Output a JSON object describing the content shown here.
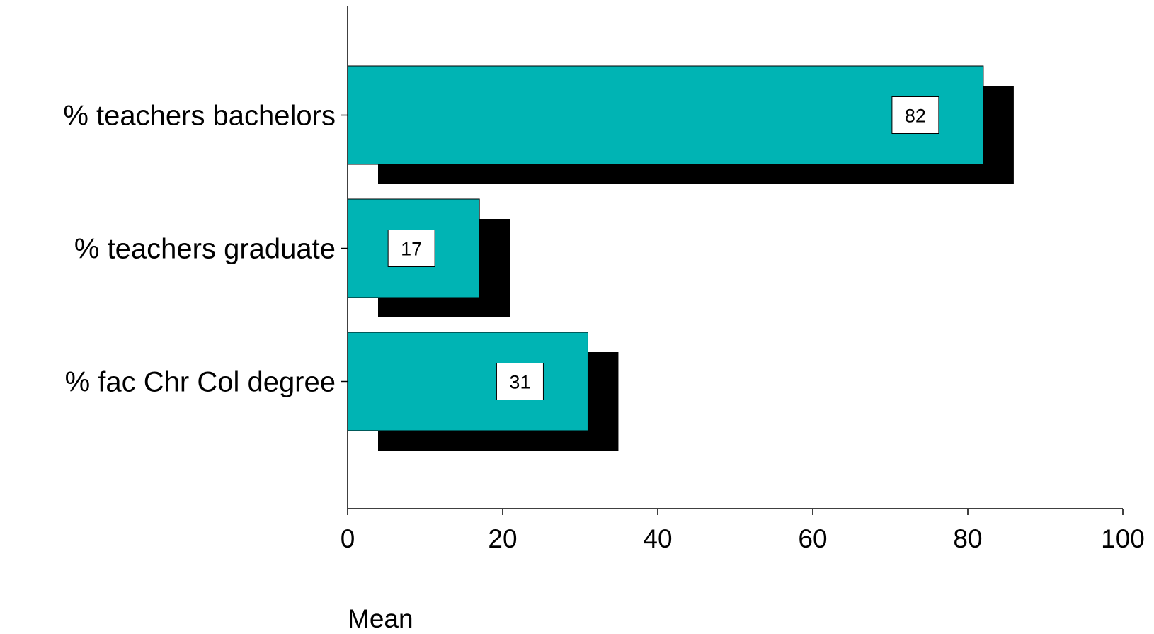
{
  "chart_data": {
    "type": "bar",
    "orientation": "horizontal",
    "categories": [
      "% teachers bachelors",
      "% teachers graduate",
      "% fac Chr Col degree"
    ],
    "values": [
      82,
      17,
      31
    ],
    "data_labels": [
      "82",
      "17",
      "31"
    ],
    "xlabel": "Mean",
    "xlim": [
      0,
      100
    ],
    "xticks": [
      0,
      20,
      40,
      60,
      80,
      100
    ],
    "xtick_labels": [
      "0",
      "20",
      "40",
      "60",
      "80",
      "100"
    ],
    "grid": false,
    "bar_color": "#00B4B4",
    "shadow_color": "#000000"
  }
}
